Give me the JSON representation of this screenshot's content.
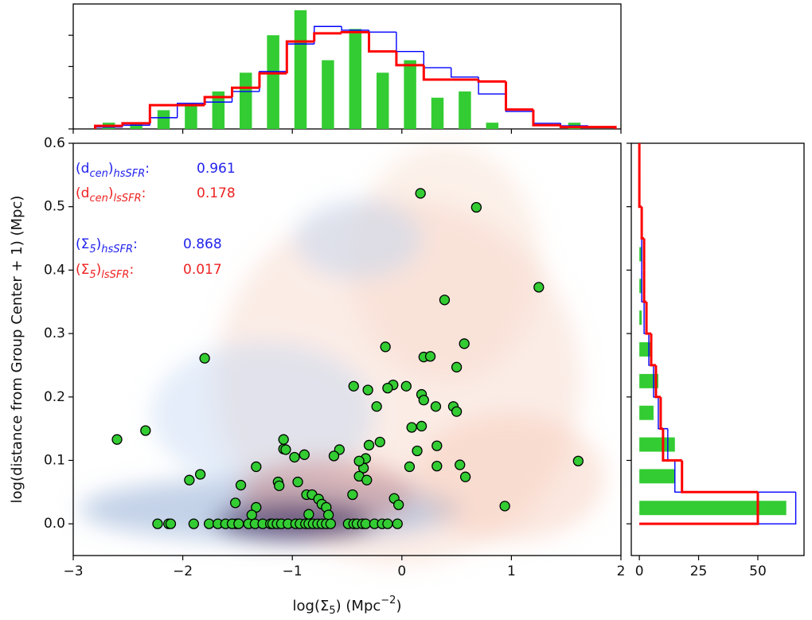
{
  "chart_data": [
    {
      "type": "scatter",
      "x_label_parts": [
        "log(Σ",
        "5",
        ") (Mpc",
        "−2",
        ")"
      ],
      "y_label": "log(distance from Group Center + 1) (Mpc)",
      "xlim": [
        -3,
        2
      ],
      "ylim": [
        -0.05,
        0.6
      ],
      "xticks": [
        {
          "value": -3,
          "label": "−3"
        },
        {
          "value": -2,
          "label": "−2"
        },
        {
          "value": -1,
          "label": "−1"
        },
        0,
        1,
        2
      ],
      "yticks": [
        {
          "value": 0,
          "label": "0.0"
        },
        0.1,
        0.2,
        0.3,
        0.4,
        0.5,
        0.6
      ],
      "series": [
        {
          "color": "#33cc33",
          "x": [
            -2.6,
            -2.34,
            -1.8,
            -1.94,
            -1.84,
            0.17,
            0.68,
            1.25,
            0.39,
            1.61,
            0.94,
            -0.15,
            0.2,
            0.26,
            0.57,
            0.5,
            -0.44,
            -0.31,
            -0.08,
            -0.13,
            0.04,
            0.18,
            0.2,
            0.31,
            0.47,
            0.5,
            -0.23,
            0.09,
            0.18,
            -1.08,
            -1.08,
            -1.06,
            -0.89,
            -0.98,
            -0.57,
            -0.62,
            -0.3,
            -0.2,
            -0.33,
            -0.35,
            -0.39,
            -0.39,
            -0.32,
            0.07,
            0.14,
            0.32,
            0.32,
            0.53,
            0.58,
            -1.33,
            -1.47,
            -1.13,
            -0.95,
            -1.12,
            -1.33,
            -1.52,
            -0.87,
            -0.82,
            -0.76,
            -0.73,
            -0.69,
            -0.85,
            -0.67,
            -0.45,
            -0.07,
            -0.03,
            -1.37,
            -1.51,
            -2.23,
            -2.13,
            -2.11,
            -1.9,
            -1.76,
            -1.68,
            -1.61,
            -1.55,
            -1.49,
            -1.4,
            -1.34,
            -1.27,
            -1.2,
            -1.18,
            -1.14,
            -1.1,
            -1.04,
            -0.97,
            -0.93,
            -0.88,
            -0.85,
            -0.81,
            -0.77,
            -0.73,
            -0.69,
            -0.65,
            -0.49,
            -0.44,
            -0.41,
            -0.36,
            -0.33,
            -0.25,
            -0.18,
            -0.13,
            -0.04
          ],
          "values": [
            0.133,
            0.147,
            0.261,
            0.069,
            0.078,
            0.521,
            0.499,
            0.373,
            0.353,
            0.099,
            0.028,
            0.279,
            0.263,
            0.264,
            0.284,
            0.247,
            0.217,
            0.211,
            0.219,
            0.214,
            0.217,
            0.204,
            0.195,
            0.185,
            0.185,
            0.177,
            0.185,
            0.152,
            0.154,
            0.133,
            0.118,
            0.117,
            0.109,
            0.105,
            0.117,
            0.107,
            0.124,
            0.129,
            0.103,
            0.088,
            0.099,
            0.075,
            0.069,
            0.09,
            0.115,
            0.123,
            0.091,
            0.093,
            0.074,
            0.09,
            0.061,
            0.066,
            0.066,
            0.06,
            0.026,
            0.033,
            0.046,
            0.046,
            0.039,
            0.031,
            0.026,
            0.015,
            0.014,
            0.046,
            0.04,
            0.03,
            0.014,
            0,
            0,
            0,
            0,
            0,
            0,
            0,
            0,
            0,
            0,
            0,
            0,
            0,
            0,
            0,
            0,
            0,
            0,
            0,
            0,
            0,
            0,
            0,
            0,
            0,
            0,
            0,
            0,
            0,
            0,
            0,
            0,
            0,
            0,
            0,
            0
          ]
        }
      ],
      "annotations": [
        {
          "parts": [
            "(d",
            "cen",
            ")",
            "hsSFR",
            ":"
          ],
          "value": 0.961,
          "color": "#2222ee"
        },
        {
          "parts": [
            "(d",
            "cen",
            ")",
            "lsSFR",
            ":"
          ],
          "value": 0.178,
          "color": "#ee2222"
        },
        {
          "parts": [
            "(Σ",
            "5",
            ")",
            "hsSFR",
            ":"
          ],
          "value": 0.868,
          "color": "#2222ee"
        },
        {
          "parts": [
            "(Σ",
            "5",
            ")",
            "lsSFR",
            ":"
          ],
          "value": 0.017,
          "color": "#ee2222"
        }
      ]
    },
    {
      "type": "histogram",
      "bins": [
        -2.8,
        -2.55,
        -2.3,
        -2.05,
        -1.8,
        -1.55,
        -1.3,
        -1.05,
        -0.8,
        -0.55,
        -0.3,
        -0.05,
        0.2,
        0.45,
        0.7,
        0.95,
        1.2,
        1.45,
        1.7,
        1.95
      ],
      "xlim": [
        -3,
        2
      ],
      "ylim": [
        0,
        20
      ],
      "xticks": [
        -3,
        -2,
        -1,
        0,
        1,
        2
      ],
      "yticks": [
        0,
        5,
        10,
        15
      ],
      "series": [
        {
          "style": "step",
          "color": "#0000ff",
          "values": [
            0.3,
            0.6,
            1.8,
            4.1,
            4.3,
            6,
            9.2,
            13.6,
            16.4,
            15.8,
            15.5,
            12.4,
            9.8,
            8.3,
            5.6,
            2.8,
            0.9,
            0.5,
            0.3
          ]
        },
        {
          "style": "step",
          "color": "#ff0000",
          "values": [
            0.5,
            0.9,
            3.8,
            3.8,
            5.1,
            6.6,
            8.9,
            14,
            15.3,
            15.5,
            12.4,
            10.2,
            7.9,
            7.9,
            7.6,
            3.1,
            0.6,
            0.3,
            0.3
          ]
        },
        {
          "style": "bar",
          "color": "#33cc33",
          "values": [
            1,
            1,
            3,
            4,
            6,
            9,
            15,
            19,
            11,
            16,
            9,
            11,
            5,
            6,
            1,
            0,
            0,
            1,
            0
          ]
        }
      ]
    },
    {
      "type": "histogram",
      "orientation": "horizontal",
      "bins": [
        0,
        0.05,
        0.1,
        0.15,
        0.2,
        0.25,
        0.3,
        0.35,
        0.4,
        0.45,
        0.5,
        0.55,
        0.6
      ],
      "xlim": [
        -3.4,
        69.5
      ],
      "ylim": [
        -0.05,
        0.6
      ],
      "xticks": [
        0,
        25,
        50
      ],
      "yticks": [
        0,
        0.1,
        0.2,
        0.3,
        0.4,
        0.5,
        0.6
      ],
      "series": [
        {
          "style": "step",
          "color": "#0000ff",
          "values": [
            66,
            15,
            12,
            8,
            6,
            4,
            2,
            1,
            1,
            1,
            0,
            0
          ]
        },
        {
          "style": "step",
          "color": "#ff0000",
          "values": [
            50,
            18,
            10,
            9,
            7,
            5,
            3,
            2,
            2,
            1,
            0,
            0
          ]
        },
        {
          "style": "bar",
          "color": "#33cc33",
          "values": [
            62,
            15,
            15,
            6,
            8,
            5,
            1,
            1,
            1,
            0,
            0,
            0
          ]
        }
      ]
    }
  ]
}
